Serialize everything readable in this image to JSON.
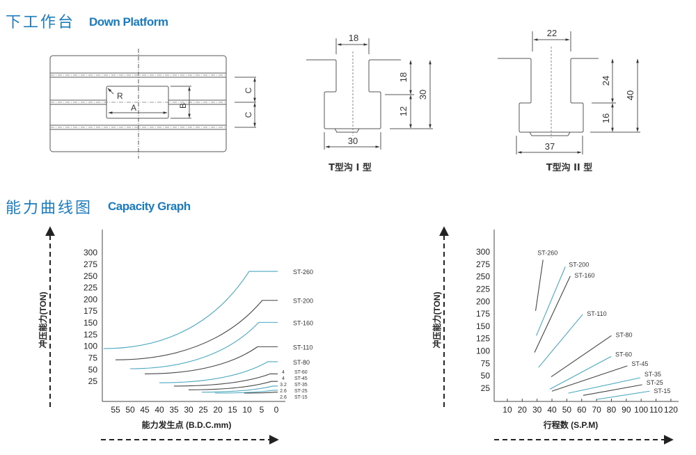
{
  "sections": {
    "platform": {
      "title_zh": "下工作台",
      "title_en": "Down Platform"
    },
    "capacity": {
      "title_zh": "能力曲线图",
      "title_en": "Capacity Graph"
    }
  },
  "platform_drawing": {
    "labels": {
      "a": "A",
      "b": "B",
      "c1": "C",
      "c2": "C",
      "r": "R"
    }
  },
  "t_slot_1": {
    "caption": "T型沟 I 型",
    "dims": {
      "top": "18",
      "bottom": "30",
      "upper": "18",
      "lower": "12",
      "total": "30"
    }
  },
  "t_slot_2": {
    "caption": "T型沟 II 型",
    "dims": {
      "top": "22",
      "bottom": "37",
      "upper": "24",
      "lower": "16",
      "total": "40"
    }
  },
  "colors": {
    "title": "#1a7bbf",
    "teal": "#4aa8c0",
    "dark": "#444444"
  },
  "chart_data": [
    {
      "type": "line",
      "ylabel": "冲压能力(TON)",
      "xlabel": "能力发生点 (B.D.C.mm)",
      "x_ticks": [
        "55",
        "50",
        "45",
        "40",
        "35",
        "30",
        "25",
        "20",
        "15",
        "10",
        "5",
        "0"
      ],
      "y_ticks": [
        "25",
        "50",
        "75",
        "100",
        "125",
        "150",
        "175",
        "200",
        "225",
        "250",
        "275",
        "300"
      ],
      "xlim": [
        55,
        0
      ],
      "ylim": [
        0,
        300
      ],
      "x_reversed": true,
      "series": [
        {
          "name": "ST-260",
          "color": "teal",
          "points": [
            [
              59,
              95
            ],
            [
              9.3,
              260
            ],
            [
              -0.5,
              260
            ]
          ]
        },
        {
          "name": "ST-200",
          "color": "dark",
          "points": [
            [
              55,
              71
            ],
            [
              4.8,
              198
            ],
            [
              -0.5,
              198
            ]
          ]
        },
        {
          "name": "ST-160",
          "color": "teal",
          "points": [
            [
              50,
              52
            ],
            [
              6,
              151
            ],
            [
              -0.5,
              151
            ]
          ]
        },
        {
          "name": "ST-110",
          "color": "dark",
          "points": [
            [
              45,
              41
            ],
            [
              6.4,
              99
            ],
            [
              -0.5,
              99
            ]
          ]
        },
        {
          "name": "ST-80",
          "color": "teal",
          "points": [
            [
              40,
              22
            ],
            [
              2.9,
              67
            ],
            [
              -0.5,
              67
            ]
          ]
        },
        {
          "name": "ST-60",
          "color": "dark",
          "stroke_label": "4",
          "points": [
            [
              35,
              15
            ],
            [
              2.1,
              41
            ],
            [
              -0.5,
              41
            ]
          ]
        },
        {
          "name": "ST-45",
          "color": "dark",
          "stroke_label": "4",
          "points": [
            [
              30,
              7
            ],
            [
              1.7,
              25
            ],
            [
              -0.5,
              25
            ]
          ]
        },
        {
          "name": "ST-35",
          "color": "teal",
          "stroke_label": "3.2",
          "points": [
            [
              25.5,
              2
            ],
            [
              1.2,
              15
            ],
            [
              -0.5,
              15
            ]
          ]
        },
        {
          "name": "ST-25",
          "color": "teal",
          "stroke_label": "2.6",
          "points": [
            [
              21,
              0
            ],
            [
              1,
              6
            ],
            [
              -0.5,
              6
            ]
          ]
        },
        {
          "name": "ST-15",
          "color": "dark",
          "stroke_label": "2.6",
          "points": [
            [
              11,
              0
            ],
            [
              0.5,
              2
            ],
            [
              -0.5,
              2
            ]
          ]
        }
      ]
    },
    {
      "type": "line",
      "ylabel": "冲压能力(TON)",
      "xlabel": "行程数 (S.P.M)",
      "x_ticks": [
        "10",
        "20",
        "30",
        "40",
        "50",
        "60",
        "70",
        "80",
        "90",
        "100",
        "110",
        "120"
      ],
      "y_ticks": [
        "25",
        "50",
        "75",
        "100",
        "125",
        "150",
        "175",
        "200",
        "225",
        "250",
        "275",
        "300"
      ],
      "xlim": [
        0,
        125
      ],
      "ylim": [
        0,
        300
      ],
      "series": [
        {
          "name": "ST-260",
          "color": "dark",
          "points": [
            [
              29,
              181
            ],
            [
              34,
              284
            ]
          ]
        },
        {
          "name": "ST-200",
          "color": "teal",
          "points": [
            [
              29.5,
              131
            ],
            [
              49,
              270
            ]
          ]
        },
        {
          "name": "ST-160",
          "color": "dark",
          "points": [
            [
              28.3,
              97
            ],
            [
              52.3,
              251
            ]
          ]
        },
        {
          "name": "ST-110",
          "color": "teal",
          "points": [
            [
              31,
              67
            ],
            [
              60.7,
              174
            ]
          ]
        },
        {
          "name": "ST-80",
          "color": "dark",
          "points": [
            [
              39.5,
              48
            ],
            [
              80,
              131
            ]
          ]
        },
        {
          "name": "ST-60",
          "color": "teal",
          "points": [
            [
              38.6,
              23
            ],
            [
              79.8,
              89
            ]
          ]
        },
        {
          "name": "ST-45",
          "color": "dark",
          "points": [
            [
              40,
              19
            ],
            [
              90.7,
              70
            ]
          ]
        },
        {
          "name": "ST-35",
          "color": "teal",
          "points": [
            [
              51,
              15
            ],
            [
              99.4,
              46
            ]
          ]
        },
        {
          "name": "ST-25",
          "color": "dark",
          "points": [
            [
              61,
              10.5
            ],
            [
              100.7,
              32
            ]
          ]
        },
        {
          "name": "ST-15",
          "color": "teal",
          "points": [
            [
              70.4,
              2.5
            ],
            [
              105.7,
              19
            ]
          ]
        }
      ]
    }
  ]
}
